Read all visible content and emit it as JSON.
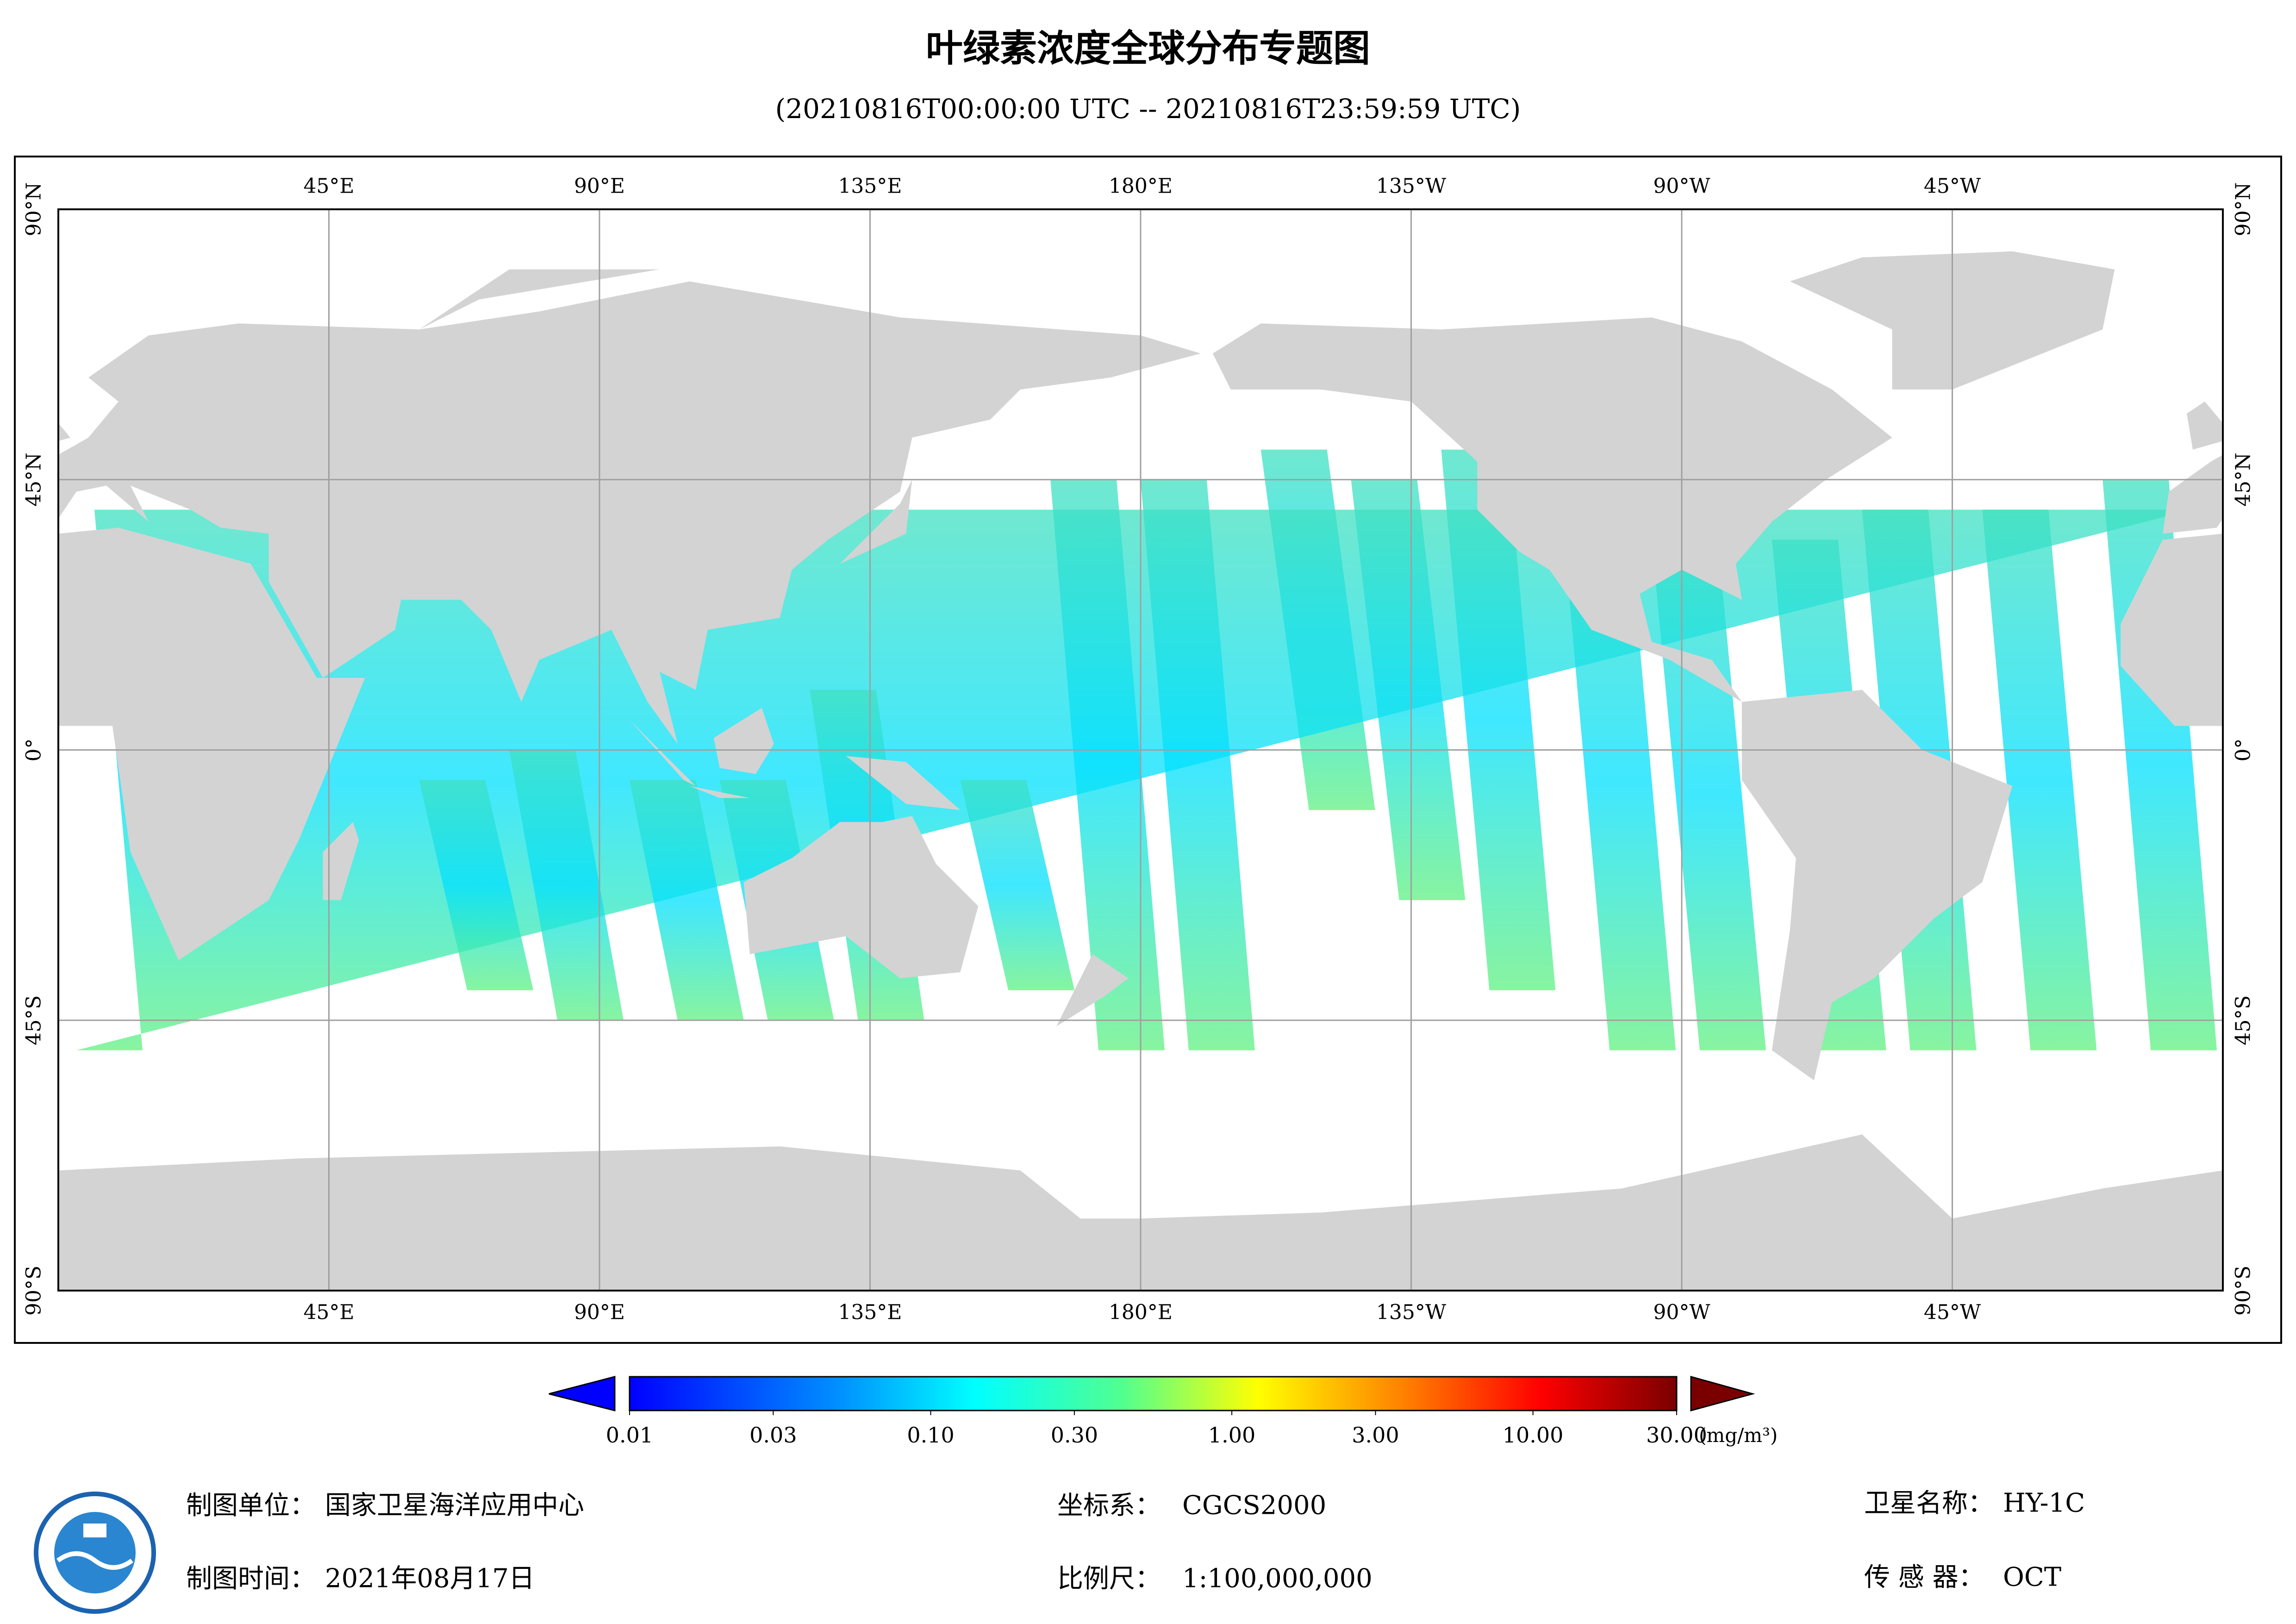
{
  "title": "叶绿素浓度全球分布专题图",
  "subtitle": "(20210816T00:00:00 UTC -- 20210816T23:59:59 UTC)",
  "map": {
    "lon_ticks": [
      {
        "value": 45,
        "label": "45°E"
      },
      {
        "value": 90,
        "label": "90°E"
      },
      {
        "value": 135,
        "label": "135°E"
      },
      {
        "value": 180,
        "label": "180°E"
      },
      {
        "value": -135,
        "label": "135°W"
      },
      {
        "value": -90,
        "label": "90°W"
      },
      {
        "value": -45,
        "label": "45°W"
      }
    ],
    "lat_ticks": [
      {
        "value": 90,
        "label": "90°N"
      },
      {
        "value": 45,
        "label": "45°N"
      },
      {
        "value": 0,
        "label": "0°"
      },
      {
        "value": -45,
        "label": "45°S"
      },
      {
        "value": -90,
        "label": "90°S"
      }
    ]
  },
  "colorbar": {
    "lim": [
      0.01,
      30
    ],
    "ticks": [
      {
        "value": 0.01,
        "label": "0.01"
      },
      {
        "value": 0.03,
        "label": "0.03"
      },
      {
        "value": 0.1,
        "label": "0.10"
      },
      {
        "value": 0.3,
        "label": "0.30"
      },
      {
        "value": 1,
        "label": "1.00"
      },
      {
        "value": 3,
        "label": "3.00"
      },
      {
        "value": 10,
        "label": "10.00"
      },
      {
        "value": 30,
        "label": "30.00"
      }
    ],
    "unit": "(mg/m³)"
  },
  "footer": [
    {
      "label": "制图单位：",
      "value": "国家卫星海洋应用中心"
    },
    {
      "label": "制图时间：",
      "value": "2021年08月17日"
    },
    {
      "label": "坐标系：",
      "value": "CGCS2000"
    },
    {
      "label": "比例尺：",
      "value": "1:100,000,000"
    },
    {
      "label": "卫星名称：",
      "value": "HY-1C"
    },
    {
      "label": "传 感 器：",
      "value": "OCT"
    }
  ]
}
